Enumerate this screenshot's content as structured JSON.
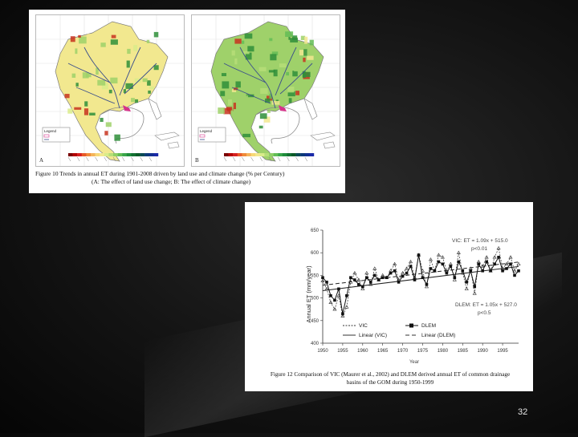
{
  "figure10": {
    "caption_line1": "Figure 10 Trends in annual ET during 1901-2008 driven by land use and climate change (% per Century)",
    "caption_line2": "(A: The effect of land use change; B: The effect of climate change)",
    "panel_a": "A",
    "panel_b": "B",
    "legend_title": "Legend",
    "colors": {
      "land": "#f2e88f",
      "mid_green": "#9fd16a",
      "dark_green": "#2f8f3a",
      "red": "#c8321e",
      "river": "#3b4f8c",
      "water_outline": "#8a8a8a",
      "highlight": "#d6338a"
    },
    "legend_colors": [
      "#7a0000",
      "#b30000",
      "#d62020",
      "#e85a2a",
      "#f08a3a",
      "#f4b45a",
      "#f7d877",
      "#f2e88f",
      "#d9ec8a",
      "#b6de78",
      "#8fcf66",
      "#63bd55",
      "#3aa64a",
      "#1f8c3c",
      "#137032",
      "#0b5a28",
      "#0a4a55",
      "#0c3a78",
      "#123090",
      "#1a2aa8"
    ]
  },
  "figure12": {
    "caption_line1": "Figure 12 Comparison of VIC (Maurer et al., 2002) and DLEM derived annual ET of common drainage",
    "caption_line2": "basins of the GOM during 1950-1999",
    "ylabel": "Annual ET (mm/year)",
    "xlabel": "Year",
    "eq_vic": "VIC: ET = 1.09x + 515.0",
    "p_vic": "p<0.01",
    "eq_dlem": "DLEM: ET = 1.05x + 527.0",
    "p_dlem": "p<0.5",
    "legend": [
      "VIC",
      "DLEM",
      "Linear (VIC)",
      "Linear (DLEM)"
    ]
  },
  "chart_data": {
    "type": "line",
    "title": "",
    "xlabel": "Year",
    "ylabel": "Annual ET (mm/year)",
    "xlim": [
      1950,
      1999
    ],
    "ylim": [
      400,
      650
    ],
    "x_ticks": [
      1950,
      1955,
      1960,
      1965,
      1970,
      1975,
      1980,
      1985,
      1990,
      1995
    ],
    "y_ticks": [
      400,
      450,
      500,
      550,
      600,
      650
    ],
    "x": [
      1950,
      1951,
      1952,
      1953,
      1954,
      1955,
      1956,
      1957,
      1958,
      1959,
      1960,
      1961,
      1962,
      1963,
      1964,
      1965,
      1966,
      1967,
      1968,
      1969,
      1970,
      1971,
      1972,
      1973,
      1974,
      1975,
      1976,
      1977,
      1978,
      1979,
      1980,
      1981,
      1982,
      1983,
      1984,
      1985,
      1986,
      1987,
      1988,
      1989,
      1990,
      1991,
      1992,
      1993,
      1994,
      1995,
      1996,
      1997,
      1998,
      1999
    ],
    "series": [
      {
        "name": "VIC",
        "values": [
          538,
          520,
          490,
          475,
          505,
          460,
          480,
          535,
          555,
          540,
          520,
          555,
          530,
          565,
          540,
          550,
          545,
          560,
          575,
          540,
          555,
          565,
          580,
          545,
          595,
          560,
          525,
          585,
          560,
          595,
          590,
          560,
          575,
          540,
          600,
          555,
          520,
          565,
          510,
          580,
          570,
          590,
          560,
          590,
          610,
          565,
          575,
          590,
          560,
          575
        ]
      },
      {
        "name": "DLEM",
        "values": [
          545,
          535,
          505,
          495,
          520,
          465,
          505,
          545,
          540,
          530,
          525,
          545,
          535,
          550,
          540,
          545,
          545,
          555,
          560,
          535,
          548,
          555,
          570,
          540,
          595,
          545,
          530,
          565,
          560,
          580,
          575,
          555,
          570,
          545,
          580,
          560,
          535,
          560,
          525,
          575,
          560,
          580,
          560,
          575,
          590,
          560,
          565,
          575,
          550,
          560
        ]
      }
    ],
    "trendlines": [
      {
        "name": "Linear (VIC)",
        "slope": 1.09,
        "intercept": 515.0,
        "p": "p<0.01"
      },
      {
        "name": "Linear (DLEM)",
        "slope": 1.05,
        "intercept": 527.0,
        "p": "p<0.5"
      }
    ]
  },
  "page": {
    "number": "32"
  }
}
